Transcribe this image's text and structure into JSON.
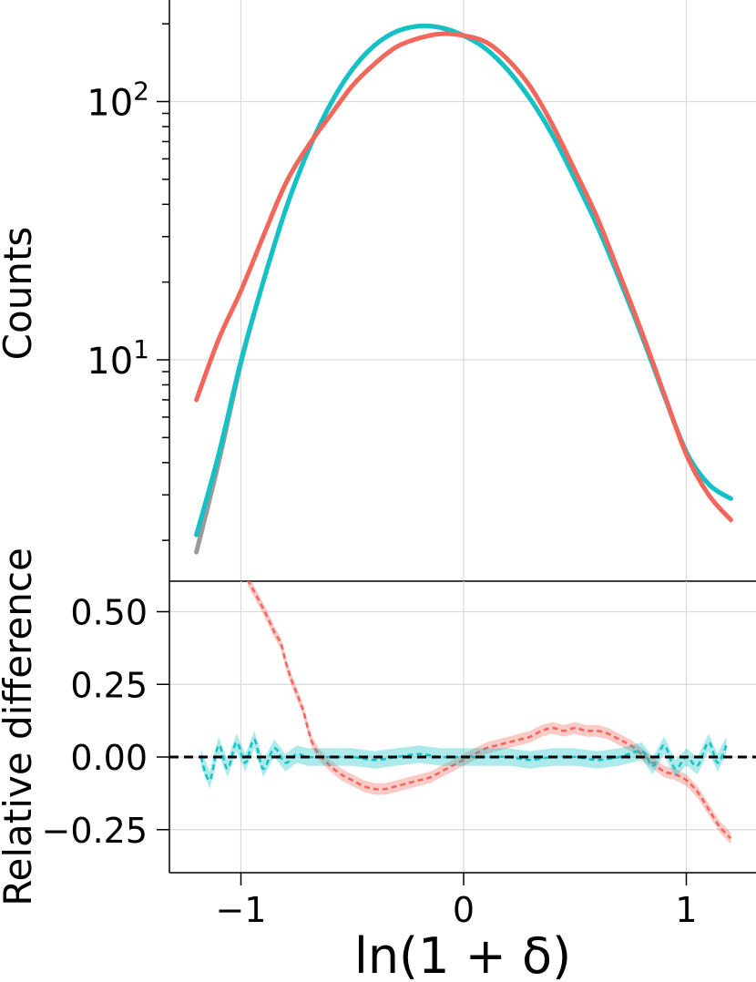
{
  "colors": {
    "red": "#f2665c",
    "cyan": "#12c2c6",
    "gray": "#9a9a9a",
    "grid": "#d9d9d9"
  },
  "labels": {
    "top_ylabel": "Counts",
    "bottom_ylabel": "Relative difference",
    "xlabel": "ln(1 + δ)"
  },
  "chart_data": [
    {
      "type": "line",
      "panel": "top",
      "yscale": "log",
      "ylabel": "Counts",
      "xlim": [
        -1.3,
        1.3
      ],
      "ylim": [
        1.5,
        250
      ],
      "grid": true,
      "x_ticks": [
        -1,
        0,
        1
      ],
      "y_major_ticks": [
        {
          "value": 10,
          "base": "10",
          "exp": "1"
        },
        {
          "value": 100,
          "base": "10",
          "exp": "2"
        }
      ],
      "series": [
        {
          "color": "gray",
          "x": [
            -1.2,
            -1.1,
            -1.0,
            -0.9,
            -0.8,
            -0.7,
            -0.6,
            -0.5,
            -0.4,
            -0.3,
            -0.2,
            -0.1,
            0.0,
            0.1,
            0.2,
            0.3,
            0.4,
            0.5,
            0.6,
            0.7,
            0.8,
            0.9,
            1.0,
            1.1,
            1.2
          ],
          "y": [
            1.8,
            4.0,
            9.7,
            20,
            38,
            64,
            97,
            133,
            165,
            187,
            196,
            193,
            180,
            160,
            132,
            102,
            74,
            50,
            33,
            20.5,
            12.4,
            7.3,
            4.4,
            3.3,
            2.9
          ]
        },
        {
          "color": "cyan",
          "x": [
            -1.2,
            -1.1,
            -1.0,
            -0.9,
            -0.8,
            -0.7,
            -0.6,
            -0.5,
            -0.4,
            -0.3,
            -0.2,
            -0.1,
            0.0,
            0.1,
            0.2,
            0.3,
            0.4,
            0.5,
            0.6,
            0.7,
            0.8,
            0.9,
            1.0,
            1.1,
            1.2
          ],
          "y": [
            2.1,
            4.3,
            9.9,
            20,
            38,
            64,
            97,
            133,
            165,
            187,
            196,
            193,
            180,
            160,
            132,
            102,
            74,
            50,
            33,
            20.5,
            12.4,
            7.3,
            4.4,
            3.3,
            2.9
          ]
        },
        {
          "color": "red",
          "x": [
            -1.2,
            -1.1,
            -1.0,
            -0.9,
            -0.8,
            -0.7,
            -0.6,
            -0.5,
            -0.4,
            -0.3,
            -0.2,
            -0.1,
            0.0,
            0.1,
            0.2,
            0.3,
            0.4,
            0.5,
            0.6,
            0.7,
            0.8,
            0.9,
            1.0,
            1.1,
            1.2
          ],
          "y": [
            7.0,
            12.0,
            18.5,
            30,
            48,
            67,
            88,
            115,
            140,
            163,
            176,
            183,
            180,
            170,
            145,
            114,
            81,
            54,
            35.5,
            21.5,
            12.8,
            7.4,
            4.3,
            3.0,
            2.4
          ]
        }
      ]
    },
    {
      "type": "line",
      "panel": "bottom",
      "ylabel": "Relative difference",
      "xlabel": "ln(1 + δ)",
      "xlim": [
        -1.3,
        1.3
      ],
      "ylim": [
        -0.39,
        0.61
      ],
      "grid": true,
      "x_ticks": [
        {
          "value": -1,
          "label": "−1"
        },
        {
          "value": 0,
          "label": "0"
        },
        {
          "value": 1,
          "label": "1"
        }
      ],
      "y_ticks": [
        {
          "value": 0.5,
          "label": "0.50"
        },
        {
          "value": 0.25,
          "label": "0.25"
        },
        {
          "value": 0.0,
          "label": "0.00"
        },
        {
          "value": -0.25,
          "label": "−0.25"
        }
      ],
      "reference_line": {
        "y": 0,
        "style": "dashed",
        "color": "#000000"
      },
      "series": [
        {
          "color": "red",
          "style": "dashed",
          "band": true,
          "band_halfwidth": 0.02,
          "x": [
            -0.97,
            -0.92,
            -0.88,
            -0.85,
            -0.82,
            -0.8,
            -0.78,
            -0.75,
            -0.72,
            -0.7,
            -0.68,
            -0.65,
            -0.6,
            -0.55,
            -0.5,
            -0.45,
            -0.4,
            -0.35,
            -0.3,
            -0.25,
            -0.2,
            -0.15,
            -0.1,
            -0.05,
            0.0,
            0.05,
            0.1,
            0.15,
            0.2,
            0.25,
            0.3,
            0.35,
            0.4,
            0.45,
            0.5,
            0.55,
            0.6,
            0.65,
            0.7,
            0.75,
            0.8,
            0.85,
            0.9,
            0.95,
            1.0,
            1.05,
            1.1,
            1.15,
            1.2
          ],
          "y": [
            0.61,
            0.54,
            0.48,
            0.43,
            0.39,
            0.33,
            0.28,
            0.22,
            0.16,
            0.1,
            0.05,
            0.01,
            -0.03,
            -0.06,
            -0.08,
            -0.1,
            -0.11,
            -0.11,
            -0.1,
            -0.09,
            -0.08,
            -0.07,
            -0.05,
            -0.03,
            -0.01,
            0.01,
            0.03,
            0.04,
            0.05,
            0.06,
            0.07,
            0.09,
            0.1,
            0.09,
            0.1,
            0.09,
            0.09,
            0.08,
            0.06,
            0.04,
            0.01,
            -0.02,
            -0.05,
            -0.06,
            -0.08,
            -0.12,
            -0.18,
            -0.24,
            -0.28
          ]
        },
        {
          "color": "cyan",
          "style": "dashed",
          "band": true,
          "band_halfwidth": 0.03,
          "x": [
            -1.18,
            -1.14,
            -1.1,
            -1.06,
            -1.02,
            -0.98,
            -0.94,
            -0.9,
            -0.85,
            -0.8,
            -0.75,
            -0.7,
            -0.6,
            -0.5,
            -0.4,
            -0.3,
            -0.2,
            -0.1,
            0.0,
            0.1,
            0.2,
            0.3,
            0.4,
            0.5,
            0.6,
            0.7,
            0.8,
            0.85,
            0.9,
            0.95,
            1.0,
            1.05,
            1.1,
            1.14,
            1.18
          ],
          "y": [
            0.0,
            -0.08,
            0.04,
            -0.04,
            0.05,
            -0.02,
            0.06,
            -0.04,
            0.03,
            -0.02,
            0.01,
            0.0,
            0.0,
            0.0,
            -0.01,
            0.0,
            0.01,
            0.0,
            0.0,
            0.0,
            0.0,
            -0.01,
            0.0,
            0.0,
            -0.01,
            0.0,
            0.02,
            -0.03,
            0.04,
            -0.04,
            0.0,
            -0.03,
            0.05,
            -0.02,
            0.04
          ]
        }
      ]
    }
  ]
}
